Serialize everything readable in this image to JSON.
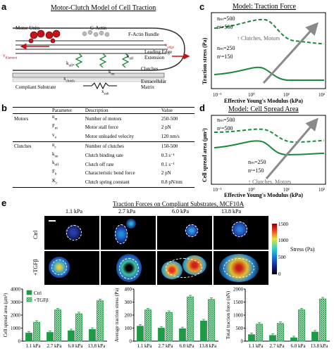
{
  "panel_labels": {
    "a": "a",
    "b": "b",
    "c": "c",
    "d": "d",
    "e": "e"
  },
  "panel_a": {
    "title": "Motor-Clutch Model of Cell Traction",
    "labels": {
      "motor_units": "Motor Units",
      "g_actin": "G-Actin",
      "f_actin_bundle": "F-Actin Bundle",
      "v_filament": "v",
      "v_filament_sub": "filament",
      "v_edge": "v",
      "v_edge_sub": "edge",
      "leading_edge": "Leading Edge",
      "extension": "Extension",
      "koff_star": "k",
      "koff_star_sub": "off*",
      "kon": "k",
      "kon_sub": "on",
      "koff": "k",
      "koff_sub": "off",
      "xclutch": "x",
      "xclutch_sub": "clutch",
      "xsub": "x",
      "xsub_sub": "sub",
      "clutches": "Clutches",
      "compliant_substrate": "Compliant Substrate",
      "ecm": "Extracellular",
      "ecm2": "Matrix"
    }
  },
  "panel_b": {
    "headers": [
      "Parameter",
      "Description",
      "Value"
    ],
    "groups": [
      {
        "name": "Motors",
        "rows": [
          [
            "n",
            "m",
            "Number of motors",
            "250-500"
          ],
          [
            "F",
            "m",
            "Motor stall force",
            "2 pN"
          ],
          [
            "v",
            "u",
            "Motor unloaded velocity",
            "120 nm/s"
          ]
        ]
      },
      {
        "name": "Clutches",
        "rows": [
          [
            "n",
            "c",
            "Number of clutches",
            "150-500"
          ],
          [
            "k",
            "on",
            "Clutch binding rate",
            "0.3 s⁻¹"
          ],
          [
            "k",
            "off",
            "Clutch off rate",
            "0.1 s⁻¹"
          ],
          [
            "F",
            "b",
            "Characteristic bond force",
            "2 pN"
          ],
          [
            "K",
            "c",
            "Clutch spring constant",
            "0.8 pN/nm"
          ]
        ]
      }
    ]
  },
  "chart_data": [
    {
      "type": "line",
      "title": "Model: Traction Force",
      "xlabel": "Effective Young's Modulus (kPa)",
      "ylabel": "Traction stress (Pa)",
      "x_ticks": [
        "10⁻¹",
        "10⁰",
        "10¹",
        "10²"
      ],
      "scale": "log-log",
      "series": [
        {
          "style": "dashed",
          "label_lines": [
            "nₘ=500",
            "nᶜ=500"
          ]
        },
        {
          "style": "solid",
          "label_lines": [
            "nₘ=250",
            "nᶜ=150"
          ]
        }
      ],
      "annotation": "↑ Clutches, Motors"
    },
    {
      "type": "line",
      "title": "Model: Cell Spread Area",
      "xlabel": "Effective Young's Modulus (kPa)",
      "ylabel": "Cell spread area (μm²)",
      "x_ticks": [
        "10⁻¹",
        "10⁰",
        "10¹",
        "10²"
      ],
      "series": [
        {
          "style": "dashed",
          "label_lines": [
            "nₘ=500",
            "nᶜ=500"
          ]
        },
        {
          "style": "solid",
          "label_lines": [
            "nₘ=250",
            "nᶜ=150"
          ]
        }
      ],
      "annotation": "↑ Clutches, Motors"
    },
    {
      "type": "bar",
      "ylabel": "Cell spread area (μm²)",
      "categories": [
        "1.1 kPa",
        "2.7 kPa",
        "6.0 kPa",
        "13.8 kPa"
      ],
      "ylim": [
        0,
        4000
      ],
      "yticks": [
        0,
        1000,
        2000,
        3000,
        4000
      ],
      "series": [
        {
          "name": "Ctrl",
          "values": [
            620,
            670,
            800,
            900
          ]
        },
        {
          "name": "+TGFβ",
          "values": [
            1450,
            2400,
            2100,
            3100
          ]
        }
      ],
      "legend": "top-left"
    },
    {
      "type": "bar",
      "ylabel": "Average traction stress (Pa)",
      "categories": [
        "1.1 kPa",
        "2.7 kPa",
        "6.0 kPa",
        "13.8 kPa"
      ],
      "ylim": [
        0,
        400
      ],
      "yticks": [
        0,
        100,
        200,
        300,
        400
      ],
      "series": [
        {
          "values": [
            115,
            100,
            95,
            155
          ]
        },
        {
          "values": [
            240,
            220,
            340,
            320
          ]
        }
      ]
    },
    {
      "type": "bar",
      "ylabel": "Total traction force (nN)",
      "categories": [
        "1.1 kPa",
        "2.7 kPa",
        "6.0 kPa",
        "13.8 kPa"
      ],
      "ylim": [
        0,
        2000
      ],
      "yticks": [
        0,
        500,
        1000,
        1500,
        2000
      ],
      "series": [
        {
          "values": [
            250,
            220,
            130,
            350
          ]
        },
        {
          "values": [
            650,
            680,
            1200,
            1620
          ]
        }
      ]
    }
  ],
  "panel_e": {
    "title": "Traction Forces on Compliant Substrates, MCF10A",
    "columns": [
      "1.1 kPa",
      "2.7 kPa",
      "6.0 kPa",
      "13.8 kPa"
    ],
    "rows": [
      "Ctrl",
      "+TGFβ"
    ],
    "colorbar": {
      "label": "Stress (Pa)",
      "ticks": [
        "1500",
        "1000",
        "500",
        "0"
      ]
    }
  },
  "colors": {
    "green": "#1a8a3a",
    "bar_green": "#1f9a46",
    "arrow_gray": "#8a8a8a",
    "red": "#cc2020"
  }
}
